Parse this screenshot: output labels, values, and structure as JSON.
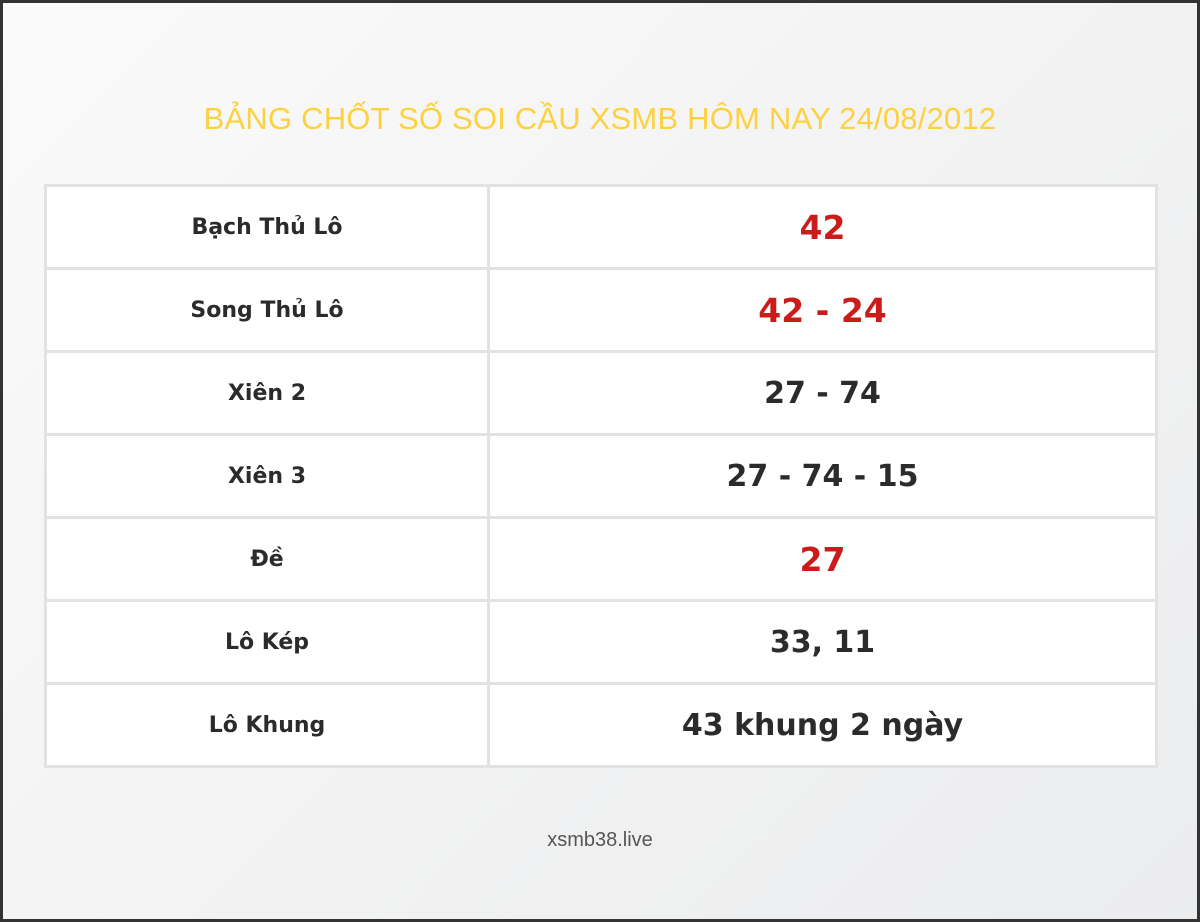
{
  "title": "BẢNG CHỐT SỐ SOI CẦU XSMB HÔM NAY 24/08/2012",
  "colors": {
    "title": "#fdd142",
    "highlight": "#cc1b1b",
    "text": "#2b2b2b"
  },
  "rows": [
    {
      "label": "Bạch Thủ Lô",
      "value": "42",
      "highlight": true
    },
    {
      "label": "Song Thủ Lô",
      "value": "42 - 24",
      "highlight": true
    },
    {
      "label": "Xiên 2",
      "value": "27 - 74",
      "highlight": false
    },
    {
      "label": "Xiên 3",
      "value": "27 - 74 - 15",
      "highlight": false
    },
    {
      "label": "Đề",
      "value": "27",
      "highlight": true
    },
    {
      "label": "Lô Kép",
      "value": "33, 11",
      "highlight": false
    },
    {
      "label": "Lô Khung",
      "value": "43 khung 2 ngày",
      "highlight": false
    }
  ],
  "footer": "xsmb38.live"
}
